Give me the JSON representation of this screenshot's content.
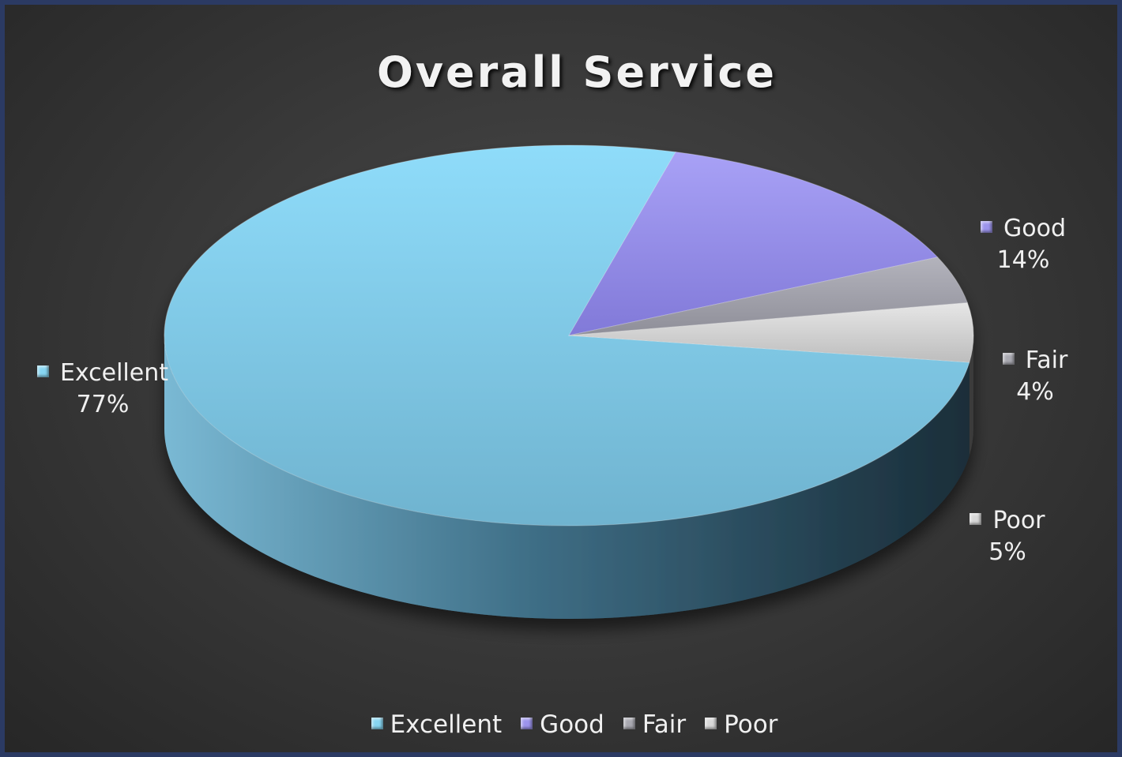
{
  "chart_data": {
    "type": "pie",
    "style": "3d",
    "title": "Overall Service",
    "categories": [
      "Excellent",
      "Good",
      "Fair",
      "Poor"
    ],
    "values": [
      77,
      14,
      4,
      5
    ],
    "data_labels": [
      "77%",
      "14%",
      "4%",
      "5%"
    ],
    "colors": [
      "#87d6f2",
      "#9c94ec",
      "#a9a9b1",
      "#d8d8d8"
    ],
    "legend_position": "bottom"
  }
}
